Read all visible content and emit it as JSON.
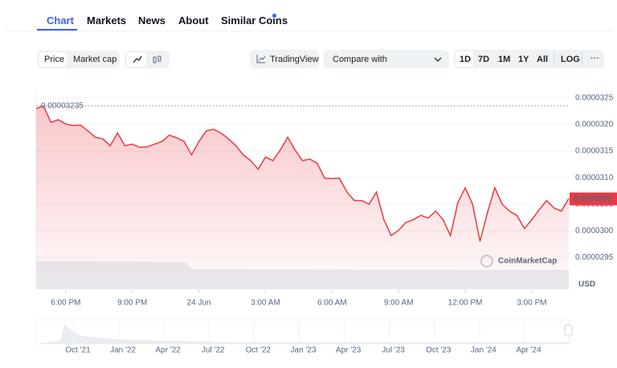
{
  "tabs": [
    "Chart",
    "Markets",
    "News",
    "About",
    "Similar Coins"
  ],
  "toolbar": {
    "price": "Price",
    "market_cap": "Market cap",
    "trading_view": "TradingView",
    "compare": "Compare with",
    "ranges": [
      "1D",
      "7D",
      "1M",
      "1Y",
      "All",
      "LOG"
    ],
    "more": "···"
  },
  "chart_data": {
    "type": "line",
    "color": "#ea3943",
    "currency": "USD",
    "watermark": "CoinMarketCap",
    "high": 3.235e-05,
    "current_price": 3.06e-05,
    "values": [
      3.23e-05,
      3.235e-05,
      3.204e-05,
      3.209e-05,
      3.201e-05,
      3.198e-05,
      3.199e-05,
      3.188e-05,
      3.176e-05,
      3.173e-05,
      3.16e-05,
      3.184e-05,
      3.16e-05,
      3.163e-05,
      3.157e-05,
      3.158e-05,
      3.163e-05,
      3.168e-05,
      3.18e-05,
      3.175e-05,
      3.168e-05,
      3.143e-05,
      3.168e-05,
      3.188e-05,
      3.191e-05,
      3.184e-05,
      3.173e-05,
      3.16e-05,
      3.143e-05,
      3.132e-05,
      3.116e-05,
      3.139e-05,
      3.132e-05,
      3.152e-05,
      3.176e-05,
      3.152e-05,
      3.132e-05,
      3.135e-05,
      3.127e-05,
      3.099e-05,
      3.098e-05,
      3.099e-05,
      3.073e-05,
      3.057e-05,
      3.057e-05,
      3.05e-05,
      3.073e-05,
      3.021e-05,
      2.991e-05,
      3.001e-05,
      3.016e-05,
      3.021e-05,
      3.029e-05,
      3.024e-05,
      3.037e-05,
      3.021e-05,
      2.991e-05,
      3.053e-05,
      3.081e-05,
      3.05e-05,
      2.98e-05,
      3.034e-05,
      3.081e-05,
      3.05e-05,
      3.037e-05,
      3.029e-05,
      3.004e-05,
      3.021e-05,
      3.04e-05,
      3.057e-05,
      3.043e-05,
      3.037e-05,
      3.061e-05
    ],
    "ylim": [
      2.89e-05,
      3.268e-05
    ],
    "yticks": [
      3.25e-05,
      {
        "value": 3.2e-05,
        "label": "0.0000320"
      },
      3.15e-05,
      {
        "value": 3.1e-05,
        "label": "0.0000310"
      },
      3.05e-05,
      {
        "value": 3e-05,
        "label": "0.0000300"
      },
      2.95e-05
    ],
    "xlim": [
      0,
      72
    ],
    "xticks": [
      {
        "value": 4,
        "label": "6:00 PM"
      },
      {
        "value": 13,
        "label": "9:00 PM"
      },
      {
        "value": 22,
        "label": "24 Jun"
      },
      {
        "value": 31,
        "label": "3:00 AM"
      },
      {
        "value": 40,
        "label": "6:00 AM"
      },
      {
        "value": 49,
        "label": "9:00 AM"
      },
      {
        "value": 58,
        "label": "12:00 PM"
      },
      {
        "value": 67,
        "label": "3:00 PM"
      }
    ],
    "navigator_labels": [
      "Oct '21",
      "Jan '22",
      "Apr '22",
      "Jul '22",
      "Oct '22",
      "Jan '23",
      "Apr '23",
      "Jul '23",
      "Oct '23",
      "Jan '24",
      "Apr '24"
    ]
  }
}
